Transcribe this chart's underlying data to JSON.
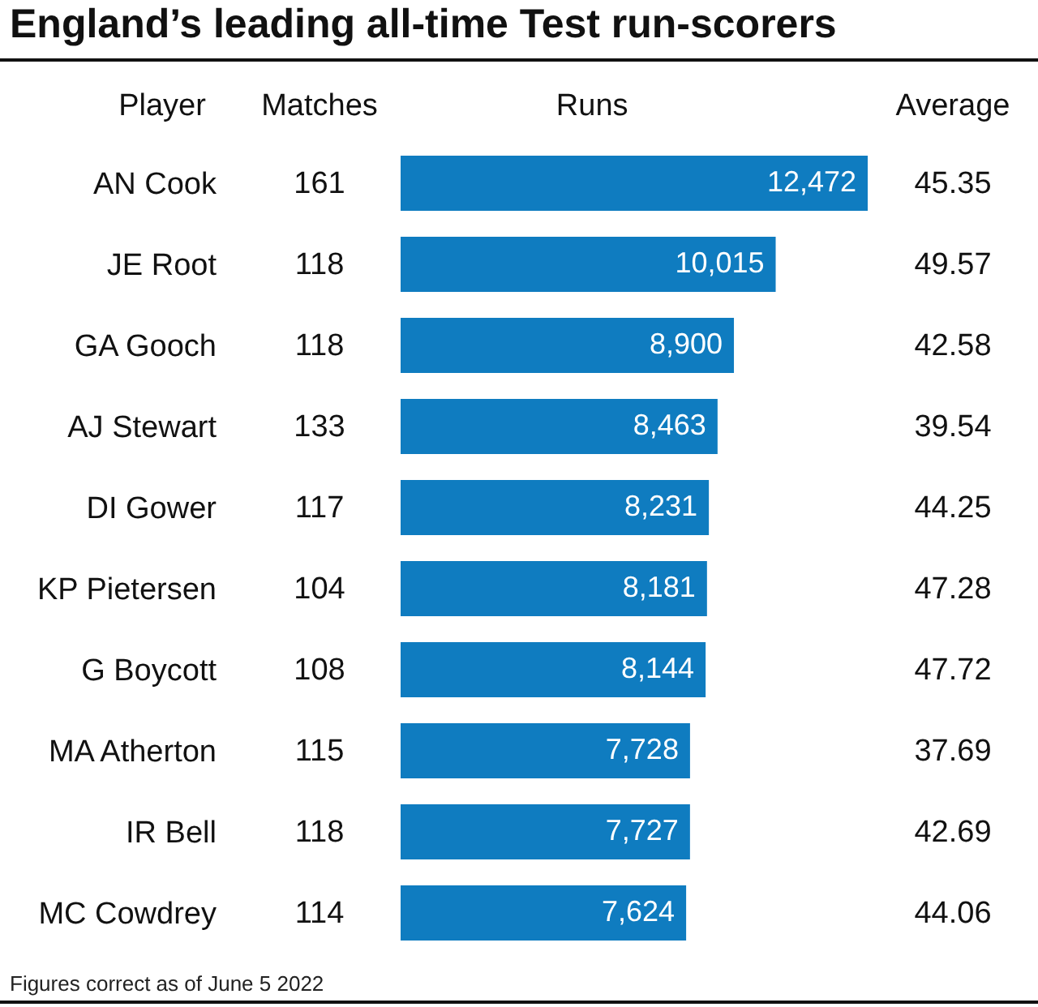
{
  "chart_data": [
    {
      "type": "other",
      "title": "England’s leading all-time Test run-scorers",
      "ylabel": "Player",
      "xlabel": "Matches",
      "categories": [
        "AN Cook",
        "JE Root",
        "GA Gooch",
        "AJ Stewart",
        "DI Gower",
        "KP Pietersen",
        "G Boycott",
        "MA Atherton",
        "IR Bell",
        "MC Cowdrey"
      ],
      "values": [
        161,
        118,
        118,
        133,
        117,
        104,
        108,
        115,
        118,
        114
      ],
      "data_labels": true,
      "annotations": [
        "Figures correct as of June 5 2022"
      ]
    },
    {
      "type": "bar",
      "orientation": "horizontal",
      "xlabel": "Runs",
      "categories": [
        null,
        null,
        null,
        null,
        null,
        null,
        null,
        null,
        null,
        null
      ],
      "values": [
        12472,
        10015,
        8900,
        8463,
        8231,
        8181,
        8144,
        7728,
        7727,
        7624
      ],
      "value_labels": [
        "12,472",
        "10,015",
        "8,900",
        "8,463",
        "8,231",
        "8,181",
        "8,144",
        "7,728",
        "7,727",
        "7,624"
      ],
      "color": "#0f7cc0"
    },
    {
      "type": "other",
      "xlabel": "Average",
      "values": [
        45.35,
        49.57,
        42.58,
        39.54,
        44.25,
        47.28,
        47.72,
        37.69,
        42.69,
        44.06
      ],
      "data_labels": true
    }
  ]
}
